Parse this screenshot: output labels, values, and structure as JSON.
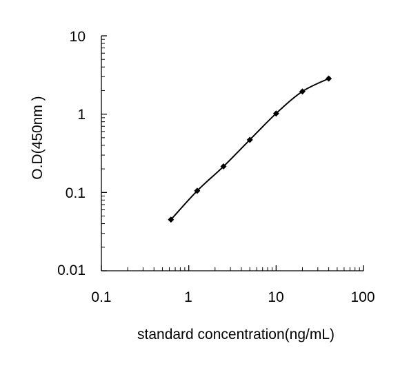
{
  "chart_data": {
    "type": "line",
    "title": "",
    "xlabel": "standard concentration(ng/mL)",
    "ylabel": "O.D(450nm )",
    "x_scale": "log",
    "y_scale": "log",
    "xlim": [
      0.1,
      100
    ],
    "ylim": [
      0.01,
      10
    ],
    "x_tick_labels": [
      "0.1",
      "1",
      "10",
      "100"
    ],
    "y_tick_labels": [
      "0.01",
      "0.1",
      "1",
      "10"
    ],
    "grid": false,
    "legend": "none",
    "series": [
      {
        "x": [
          0.625,
          1.25,
          2.5,
          5,
          10,
          20,
          40
        ],
        "y": [
          0.045,
          0.105,
          0.215,
          0.47,
          1.02,
          1.95,
          2.85
        ]
      }
    ],
    "colors": {
      "line": "#000000",
      "marker": "#000000",
      "axis": "#000000"
    }
  }
}
